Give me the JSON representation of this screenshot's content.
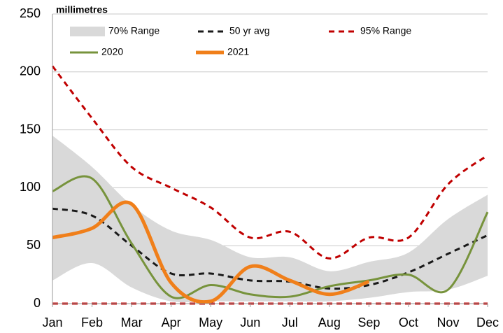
{
  "chart_data": {
    "type": "line",
    "y_label": "millimetres",
    "categories": [
      "Jan",
      "Feb",
      "Mar",
      "Apr",
      "May",
      "Jun",
      "Jul",
      "Aug",
      "Sep",
      "Oct",
      "Nov",
      "Dec"
    ],
    "ylim": [
      0,
      250
    ],
    "yticks": [
      0,
      50,
      100,
      150,
      200,
      250
    ],
    "grid": true,
    "legend": "top",
    "series": [
      {
        "name": "70% Range",
        "kind": "band",
        "color": "#d9d9d9",
        "low": [
          20,
          35,
          14,
          2,
          2,
          2,
          2,
          2,
          5,
          10,
          12,
          24
        ],
        "high": [
          145,
          118,
          85,
          63,
          55,
          40,
          40,
          28,
          36,
          44,
          73,
          94
        ]
      },
      {
        "name": "50 yr avg",
        "kind": "dashed",
        "color": "#1a1a1a",
        "values": [
          82,
          76,
          50,
          26,
          26,
          20,
          19,
          13,
          16,
          27,
          43,
          59
        ]
      },
      {
        "name": "95% Range",
        "kind": "dashed-pair",
        "color": "#c00000",
        "low": [
          0,
          0,
          0,
          0,
          0,
          0,
          0,
          0,
          0,
          0,
          0,
          0
        ],
        "high": [
          205,
          160,
          118,
          100,
          83,
          57,
          62,
          39,
          57,
          57,
          103,
          128
        ]
      },
      {
        "name": "2020",
        "kind": "solid",
        "color": "#77933c",
        "values": [
          97,
          108,
          52,
          6,
          16,
          8,
          6,
          15,
          20,
          25,
          12,
          79
        ]
      },
      {
        "name": "2021",
        "kind": "thick",
        "color": "#f07f1a",
        "values": [
          57,
          65,
          86,
          18,
          2,
          32,
          20,
          8,
          19,
          null,
          null,
          null
        ]
      }
    ]
  }
}
